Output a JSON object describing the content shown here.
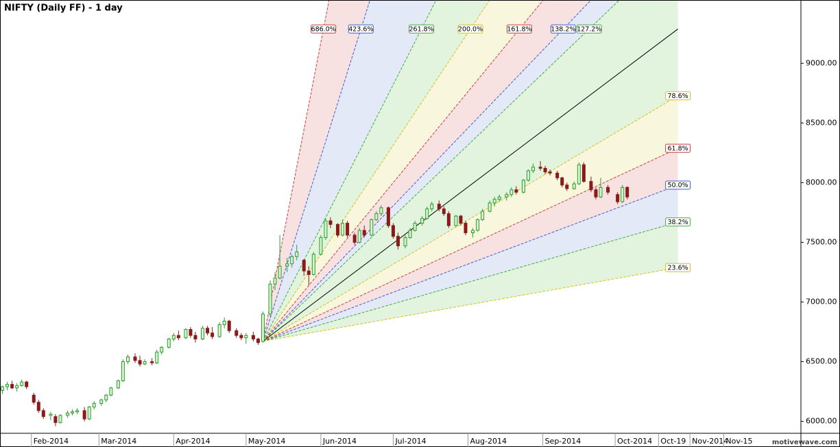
{
  "chart_data": {
    "type": "candlestick",
    "title": "NIFTY (Daily FF) - 1 day",
    "watermark": "motivewave.com",
    "xlim": [
      19,
      351
    ],
    "ylim": [
      5900,
      9530
    ],
    "xticks": [
      {
        "value": 32,
        "label": "Feb-2014"
      },
      {
        "value": 60,
        "label": "Mar-2014"
      },
      {
        "value": 91,
        "label": "Apr-2014"
      },
      {
        "value": 121,
        "label": "May-2014"
      },
      {
        "value": 152,
        "label": "Jun-2014"
      },
      {
        "value": 182,
        "label": "Jul-2014"
      },
      {
        "value": 213,
        "label": "Aug-2014"
      },
      {
        "value": 244,
        "label": "Sep-2014"
      },
      {
        "value": 274,
        "label": "Oct-2014"
      },
      {
        "value": 292,
        "label": "Oct-19"
      },
      {
        "value": 305,
        "label": "Nov-2014"
      },
      {
        "value": 319,
        "label": "Nov-15"
      }
    ],
    "yticks": [
      {
        "value": 6000,
        "label": "6000.00"
      },
      {
        "value": 6500,
        "label": "6500.00"
      },
      {
        "value": 7000,
        "label": "7000.00"
      },
      {
        "value": 7500,
        "label": "7500.00"
      },
      {
        "value": 8000,
        "label": "8000.00"
      },
      {
        "value": 8500,
        "label": "8500.00"
      },
      {
        "value": 9000,
        "label": "9000.00"
      }
    ],
    "up_color": "#2f9a2f",
    "up_fill": "#d6f5cf",
    "down_color": "#8b1a1a",
    "x": [
      20,
      22,
      24,
      26,
      28,
      30,
      33,
      35,
      37,
      40,
      42,
      44,
      47,
      49,
      51,
      54,
      56,
      58,
      61,
      63,
      65,
      68,
      70,
      72,
      75,
      77,
      79,
      82,
      84,
      86,
      89,
      91,
      93,
      96,
      98,
      100,
      103,
      105,
      107,
      110,
      112,
      114,
      117,
      119,
      121,
      124,
      126,
      128,
      131,
      133,
      135,
      138,
      140,
      142,
      145,
      147,
      149,
      152,
      154,
      156,
      159,
      161,
      163,
      166,
      168,
      170,
      173,
      175,
      177,
      180,
      182,
      184,
      187,
      189,
      191,
      194,
      196,
      198,
      201,
      203,
      205,
      208,
      210,
      212,
      215,
      217,
      219,
      222,
      224,
      226,
      229,
      231,
      233,
      236,
      238,
      240,
      243,
      245,
      247,
      250,
      252,
      254,
      257,
      259,
      261,
      264,
      266,
      268,
      271,
      275,
      277,
      279
    ],
    "open": [
      6260,
      6290,
      6310,
      6280,
      6300,
      6330,
      6220,
      6160,
      6090,
      6050,
      6040,
      5990,
      6050,
      6070,
      6080,
      6090,
      6020,
      6120,
      6150,
      6180,
      6220,
      6280,
      6340,
      6500,
      6540,
      6510,
      6480,
      6500,
      6490,
      6580,
      6620,
      6690,
      6720,
      6700,
      6770,
      6720,
      6690,
      6780,
      6740,
      6710,
      6810,
      6840,
      6760,
      6720,
      6700,
      6720,
      6690,
      6670,
      6900,
      7150,
      7200,
      7300,
      7320,
      7380,
      7350,
      7260,
      7230,
      7400,
      7540,
      7680,
      7650,
      7560,
      7660,
      7560,
      7500,
      7600,
      7560,
      7690,
      7740,
      7790,
      7640,
      7550,
      7470,
      7540,
      7600,
      7660,
      7700,
      7780,
      7820,
      7780,
      7740,
      7640,
      7720,
      7660,
      7580,
      7600,
      7690,
      7760,
      7830,
      7860,
      7880,
      7900,
      7940,
      7920,
      8020,
      8100,
      8130,
      8120,
      8090,
      8080,
      8040,
      7980,
      7950,
      7990,
      8150,
      8010,
      7940,
      7880,
      7960,
      7900,
      7840,
      7960
    ],
    "high": [
      6300,
      6330,
      6340,
      6320,
      6350,
      6340,
      6240,
      6180,
      6110,
      6080,
      6060,
      6060,
      6090,
      6100,
      6110,
      6120,
      6130,
      6170,
      6190,
      6230,
      6290,
      6350,
      6520,
      6560,
      6570,
      6550,
      6520,
      6530,
      6600,
      6630,
      6700,
      6740,
      6760,
      6780,
      6790,
      6750,
      6800,
      6800,
      6790,
      6830,
      6870,
      6850,
      6780,
      6740,
      6740,
      6750,
      6700,
      6920,
      7180,
      7250,
      7560,
      7370,
      7400,
      7480,
      7360,
      7300,
      7420,
      7560,
      7700,
      7710,
      7660,
      7690,
      7680,
      7580,
      7620,
      7640,
      7700,
      7760,
      7810,
      7800,
      7660,
      7580,
      7560,
      7620,
      7680,
      7720,
      7800,
      7840,
      7850,
      7800,
      7760,
      7730,
      7730,
      7680,
      7620,
      7700,
      7780,
      7850,
      7880,
      7900,
      7920,
      7960,
      7970,
      8030,
      8110,
      8160,
      8180,
      8140,
      8110,
      8100,
      8050,
      8000,
      8010,
      8170,
      8170,
      8050,
      7960,
      8040,
      7980,
      7920,
      7980,
      7970
    ],
    "low": [
      6230,
      6260,
      6270,
      6250,
      6290,
      6270,
      6140,
      6070,
      6020,
      6010,
      5960,
      5980,
      6030,
      6050,
      6060,
      6000,
      6010,
      6100,
      6130,
      6160,
      6210,
      6270,
      6330,
      6480,
      6490,
      6460,
      6470,
      6470,
      6480,
      6560,
      6610,
      6670,
      6680,
      6690,
      6700,
      6660,
      6680,
      6720,
      6690,
      6700,
      6780,
      6740,
      6700,
      6680,
      6650,
      6670,
      6640,
      6660,
      6880,
      7100,
      7190,
      7250,
      7290,
      7350,
      7220,
      7140,
      7220,
      7390,
      7520,
      7620,
      7540,
      7550,
      7540,
      7480,
      7490,
      7540,
      7550,
      7680,
      7720,
      7620,
      7530,
      7440,
      7450,
      7530,
      7590,
      7640,
      7690,
      7760,
      7760,
      7720,
      7620,
      7630,
      7640,
      7560,
      7540,
      7590,
      7680,
      7750,
      7800,
      7840,
      7850,
      7880,
      7900,
      7910,
      8010,
      8080,
      8100,
      8070,
      8060,
      8020,
      7960,
      7930,
      7940,
      7980,
      8000,
      7920,
      7860,
      7870,
      7900,
      7820,
      7830,
      7860
    ],
    "close": [
      6290,
      6310,
      6280,
      6300,
      6330,
      6290,
      6160,
      6090,
      6040,
      6060,
      5990,
      6050,
      6070,
      6080,
      6090,
      6020,
      6120,
      6150,
      6180,
      6220,
      6280,
      6340,
      6500,
      6540,
      6510,
      6480,
      6500,
      6490,
      6580,
      6620,
      6690,
      6720,
      6700,
      6770,
      6720,
      6690,
      6780,
      6740,
      6710,
      6810,
      6840,
      6760,
      6720,
      6700,
      6720,
      6690,
      6660,
      6900,
      7150,
      7200,
      7300,
      7320,
      7380,
      7420,
      7260,
      7230,
      7400,
      7540,
      7680,
      7650,
      7560,
      7660,
      7560,
      7500,
      7600,
      7560,
      7690,
      7740,
      7790,
      7640,
      7550,
      7470,
      7540,
      7600,
      7660,
      7700,
      7780,
      7820,
      7780,
      7740,
      7640,
      7720,
      7660,
      7580,
      7600,
      7690,
      7760,
      7830,
      7860,
      7880,
      7900,
      7940,
      7920,
      8020,
      8100,
      8130,
      8120,
      8090,
      8080,
      8040,
      7980,
      7950,
      7990,
      8150,
      8010,
      7940,
      7880,
      7960,
      7920,
      7840,
      7960,
      7880
    ],
    "fan": {
      "origin_x": 128,
      "origin_y": 6671,
      "end_x": 300,
      "end_y": 9287,
      "levels": [
        23.6,
        38.2,
        50,
        61.8,
        78.6,
        100,
        127.2,
        138.2,
        161.8,
        200,
        261.8,
        423.6,
        686
      ],
      "value_labels": [
        "23.6%",
        "38.2%",
        "50.0%",
        "61.8%",
        "78.6%",
        null,
        "127.2%",
        "138.2%",
        "161.8%",
        "200.0%",
        "261.8%",
        "423.6%",
        "686.0%"
      ],
      "colors": [
        "#d4c21c",
        "#3fae3f",
        "#3f5fcf",
        "#cf3f3f",
        "#d4c21c",
        "#000000",
        "#3fae3f",
        "#3f5fcf",
        "#cf3f3f",
        "#d4c21c",
        "#3fae3f",
        "#3f5fcf",
        "#cf3f3f"
      ],
      "fills": [
        "#e2f3de",
        "#e4e9f7",
        "#f7e1e1",
        "#f9f6de",
        "#e2f3de",
        "#e2f3de",
        "#e4e9f7",
        "#f7e1e1",
        "#f9f6de",
        "#e2f3de",
        "#e4e9f7",
        "#f7e1e1"
      ]
    }
  }
}
